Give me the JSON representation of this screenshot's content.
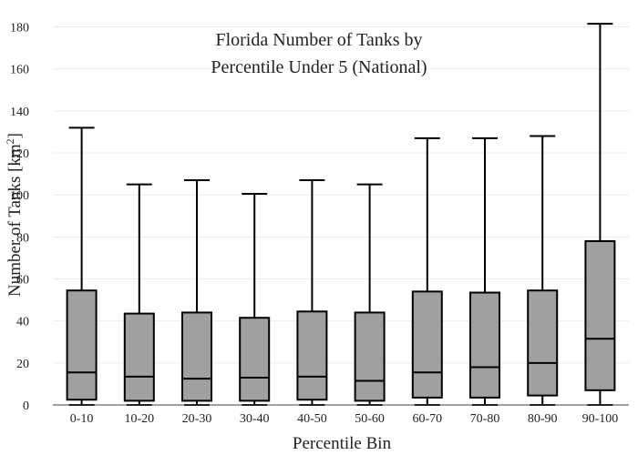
{
  "chart_data": {
    "type": "box",
    "title_lines": [
      "Florida Number of Tanks by",
      "Percentile Under 5 (National)"
    ],
    "xlabel": "Percentile Bin",
    "ylabel_main": "Number of Tanks  [km",
    "ylabel_sup": "2",
    "ylabel_end": "]",
    "ylim": [
      0,
      185
    ],
    "yticks": [
      0,
      20,
      40,
      60,
      80,
      100,
      120,
      140,
      160,
      180
    ],
    "grid": true,
    "categories": [
      "0-10",
      "10-20",
      "20-30",
      "30-40",
      "40-50",
      "50-60",
      "60-70",
      "70-80",
      "80-90",
      "90-100"
    ],
    "boxes": [
      {
        "min": 0,
        "q1": 2.5,
        "median": 15.5,
        "q3": 54.5,
        "max": 132
      },
      {
        "min": 0,
        "q1": 2,
        "median": 13.5,
        "q3": 43.5,
        "max": 105
      },
      {
        "min": 0,
        "q1": 2,
        "median": 12.5,
        "q3": 44,
        "max": 107
      },
      {
        "min": 0,
        "q1": 2,
        "median": 13,
        "q3": 41.5,
        "max": 100.5
      },
      {
        "min": 0,
        "q1": 2.5,
        "median": 13.5,
        "q3": 44.5,
        "max": 107
      },
      {
        "min": 0,
        "q1": 2,
        "median": 11.5,
        "q3": 44,
        "max": 105
      },
      {
        "min": 0,
        "q1": 3.5,
        "median": 15.5,
        "q3": 54,
        "max": 127
      },
      {
        "min": 0,
        "q1": 3.5,
        "median": 18,
        "q3": 53.5,
        "max": 127
      },
      {
        "min": 0,
        "q1": 4.5,
        "median": 20,
        "q3": 54.5,
        "max": 128
      },
      {
        "min": 0,
        "q1": 7,
        "median": 31.5,
        "q3": 78,
        "max": 181.5
      }
    ],
    "colors": {
      "box_fill": "#a0a0a0",
      "stroke": "#000000",
      "grid": "#ececec"
    }
  }
}
